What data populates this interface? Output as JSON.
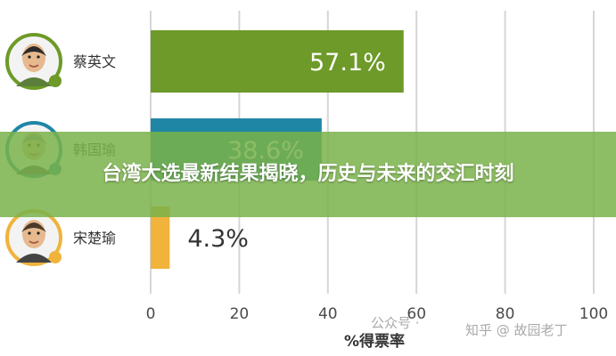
{
  "banner": {
    "title": "台湾大选最新结果揭晓，历史与未来的交汇时刻"
  },
  "watermarks": {
    "left": "公众号 ·",
    "right": "知乎 @ 故园老丁"
  },
  "colors": {
    "green": "#6d9a28",
    "blue": "#1f86a6",
    "orange": "#f0b33c",
    "grid": "#d6d6d6",
    "label": "#4a4a4a"
  },
  "chart_data": {
    "type": "bar",
    "orientation": "horizontal",
    "categories": [
      "蔡英文",
      "韩国瑜",
      "宋楚瑜"
    ],
    "values": [
      57.1,
      38.6,
      4.3
    ],
    "value_labels": [
      "57.1%",
      "38.6%",
      "4.3%"
    ],
    "xlabel": "%得票率",
    "xlim": [
      0,
      100
    ],
    "xticks": [
      0,
      20,
      40,
      60,
      80,
      100
    ],
    "grid": true,
    "legend": "none"
  }
}
